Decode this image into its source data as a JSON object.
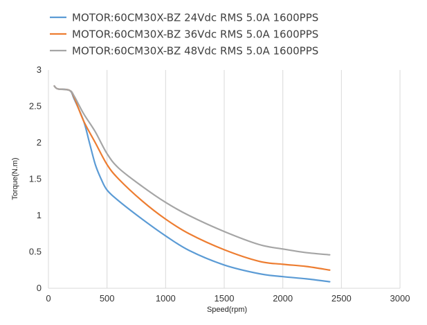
{
  "chart_data": {
    "type": "line",
    "title": "",
    "xlabel": "Speed(rpm)",
    "ylabel": "Torque(N.m)",
    "xlim": [
      0,
      3000
    ],
    "ylim": [
      0,
      3
    ],
    "x_ticks": [
      0,
      500,
      1000,
      1500,
      2000,
      2500,
      3000
    ],
    "y_ticks": [
      0,
      0.5,
      1,
      1.5,
      2,
      2.5,
      3
    ],
    "x_tick_labels": [
      "0",
      "500",
      "1000",
      "1500",
      "2000",
      "2500",
      "3000"
    ],
    "y_tick_labels": [
      "0",
      "0.5",
      "1",
      "1.5",
      "2",
      "2.5",
      "3"
    ],
    "grid": "vertical",
    "legend_position": "top",
    "series": [
      {
        "name": "MOTOR:60CM30X-BZ 24Vdc RMS 5.0A 1600PPS",
        "color": "#5b9bd5",
        "x": [
          50,
          80,
          180,
          220,
          300,
          350,
          400,
          450,
          500,
          600,
          800,
          1000,
          1200,
          1500,
          1800,
          2000,
          2200,
          2400
        ],
        "y": [
          2.78,
          2.74,
          2.72,
          2.6,
          2.3,
          2.0,
          1.7,
          1.5,
          1.35,
          1.2,
          0.95,
          0.72,
          0.52,
          0.32,
          0.2,
          0.16,
          0.13,
          0.09
        ]
      },
      {
        "name": "MOTOR:60CM30X-BZ 36Vdc RMS 5.0A 1600PPS",
        "color": "#ed7d31",
        "x": [
          50,
          80,
          180,
          220,
          300,
          400,
          500,
          600,
          800,
          1000,
          1200,
          1500,
          1800,
          2000,
          2200,
          2400
        ],
        "y": [
          2.78,
          2.74,
          2.72,
          2.62,
          2.3,
          2.0,
          1.7,
          1.5,
          1.2,
          0.95,
          0.75,
          0.53,
          0.37,
          0.33,
          0.3,
          0.25
        ]
      },
      {
        "name": "MOTOR:60CM30X-BZ 48Vdc RMS 5.0A 1600PPS",
        "color": "#a5a5a5",
        "x": [
          50,
          80,
          180,
          220,
          300,
          400,
          500,
          600,
          800,
          1000,
          1200,
          1500,
          1800,
          2000,
          2200,
          2400
        ],
        "y": [
          2.78,
          2.74,
          2.72,
          2.64,
          2.4,
          2.15,
          1.85,
          1.65,
          1.4,
          1.18,
          1.0,
          0.78,
          0.6,
          0.54,
          0.49,
          0.46
        ]
      }
    ]
  }
}
